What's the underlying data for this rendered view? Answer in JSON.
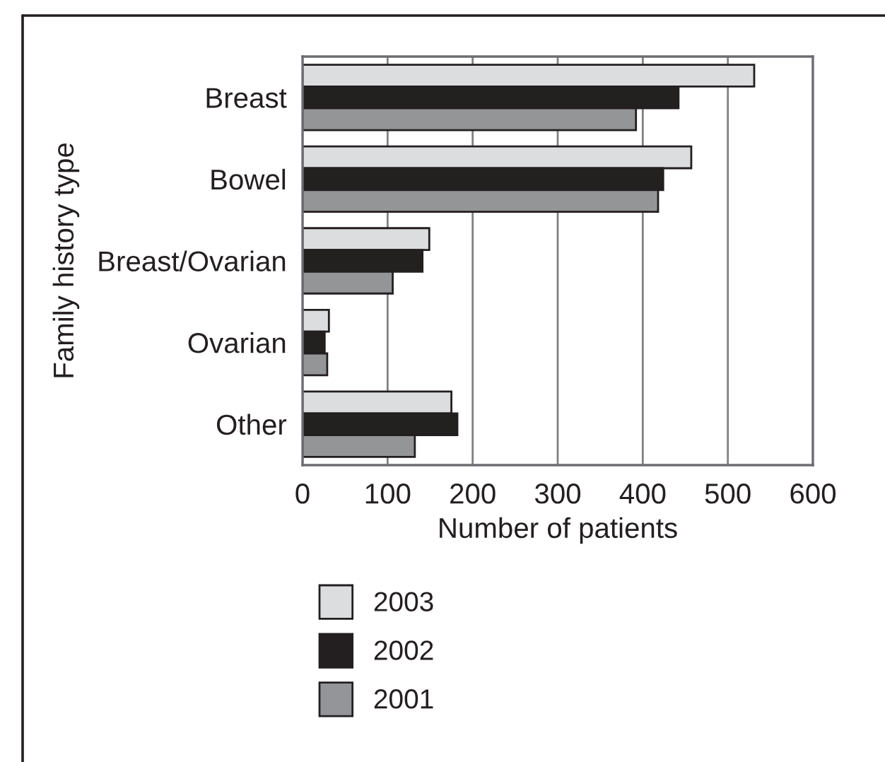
{
  "chart_data": {
    "type": "bar",
    "orientation": "horizontal",
    "xlabel": "Number of patients",
    "ylabel": "Family history type",
    "categories": [
      "Breast",
      "Bowel",
      "Breast/Ovarian",
      "Ovarian",
      "Other"
    ],
    "series": [
      {
        "name": "2003",
        "color": "#dcdddf",
        "values": [
          531,
          457,
          149,
          31,
          175
        ]
      },
      {
        "name": "2002",
        "color": "#231f20",
        "values": [
          442,
          424,
          141,
          26,
          182
        ]
      },
      {
        "name": "2001",
        "color": "#939598",
        "values": [
          392,
          418,
          106,
          29,
          132
        ]
      }
    ],
    "xlim": [
      0,
      600
    ],
    "xticks": [
      0,
      100,
      200,
      300,
      400,
      500,
      600
    ],
    "grid": "x",
    "legend": "bottom"
  }
}
